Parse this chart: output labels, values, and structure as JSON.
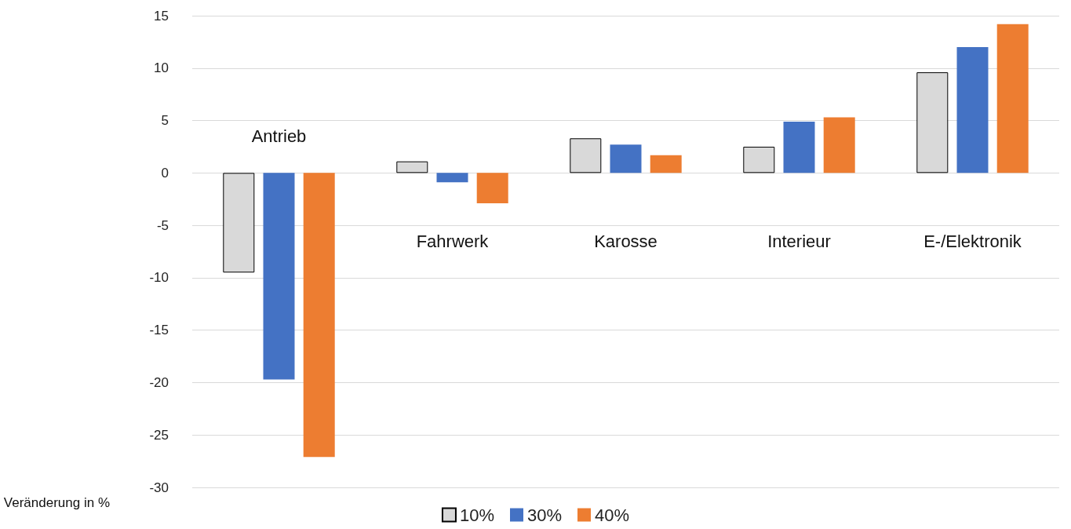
{
  "chart_data": {
    "type": "bar",
    "ylabel": "Veränderung in %",
    "categories": [
      "Antrieb",
      "Fahrwerk",
      "Karosse",
      "Interieur",
      "E-/Elektronik"
    ],
    "series": [
      {
        "name": "10%",
        "color": "#d9d9d9",
        "values": [
          -9.5,
          1.1,
          3.3,
          2.5,
          9.6
        ]
      },
      {
        "name": "30%",
        "color": "#4472c4",
        "values": [
          -19.7,
          -0.9,
          2.7,
          4.9,
          12.0
        ]
      },
      {
        "name": "40%",
        "color": "#ed7d31",
        "values": [
          -27.1,
          -2.9,
          1.7,
          5.3,
          14.2
        ]
      }
    ],
    "ylim": [
      -30,
      15
    ],
    "yticks": [
      -30,
      -25,
      -20,
      -15,
      -10,
      -5,
      0,
      5,
      10,
      15
    ],
    "grid": "y",
    "legend": "bottom"
  }
}
